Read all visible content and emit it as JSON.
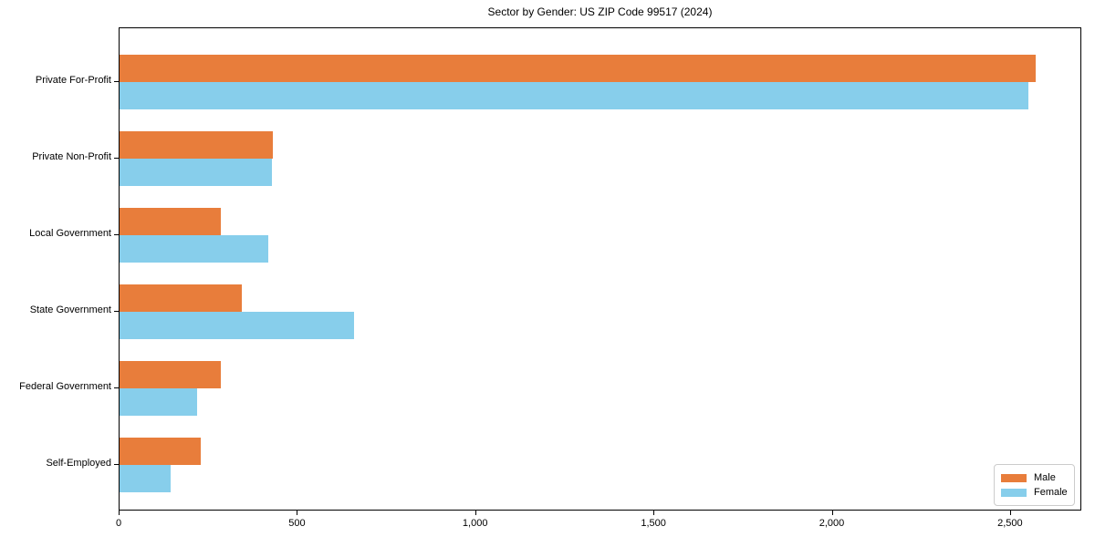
{
  "title": "Sector by Gender: US ZIP Code 99517 (2024)",
  "colors": {
    "male": "#e87d3b",
    "female": "#87ceeb",
    "axis": "#000000",
    "legend_border": "#cccccc",
    "background": "#ffffff"
  },
  "legend": {
    "position": "lower right",
    "entries": [
      {
        "label": "Male",
        "swatch": "male-swatch"
      },
      {
        "label": "Female",
        "swatch": "female-swatch"
      }
    ]
  },
  "chart_data": {
    "type": "bar",
    "orientation": "horizontal",
    "title": "Sector by Gender: US ZIP Code 99517 (2024)",
    "categories": [
      "Private For-Profit",
      "Private Non-Profit",
      "Local Government",
      "State Government",
      "Federal Government",
      "Self-Employed"
    ],
    "series": [
      {
        "name": "Male",
        "color": "#e87d3b",
        "values": [
          2570,
          430,
          285,
          343,
          283,
          228
        ]
      },
      {
        "name": "Female",
        "color": "#87ceeb",
        "values": [
          2550,
          426,
          418,
          658,
          218,
          143
        ]
      }
    ],
    "xlabel": "",
    "ylabel": "",
    "xlim": [
      0,
      2700
    ],
    "xticks": [
      0,
      500,
      1000,
      1500,
      2000,
      2500
    ],
    "xtick_labels": [
      "0",
      "500",
      "1,000",
      "1,500",
      "2,000",
      "2,500"
    ],
    "grid": false,
    "legend_position": "lower right"
  }
}
